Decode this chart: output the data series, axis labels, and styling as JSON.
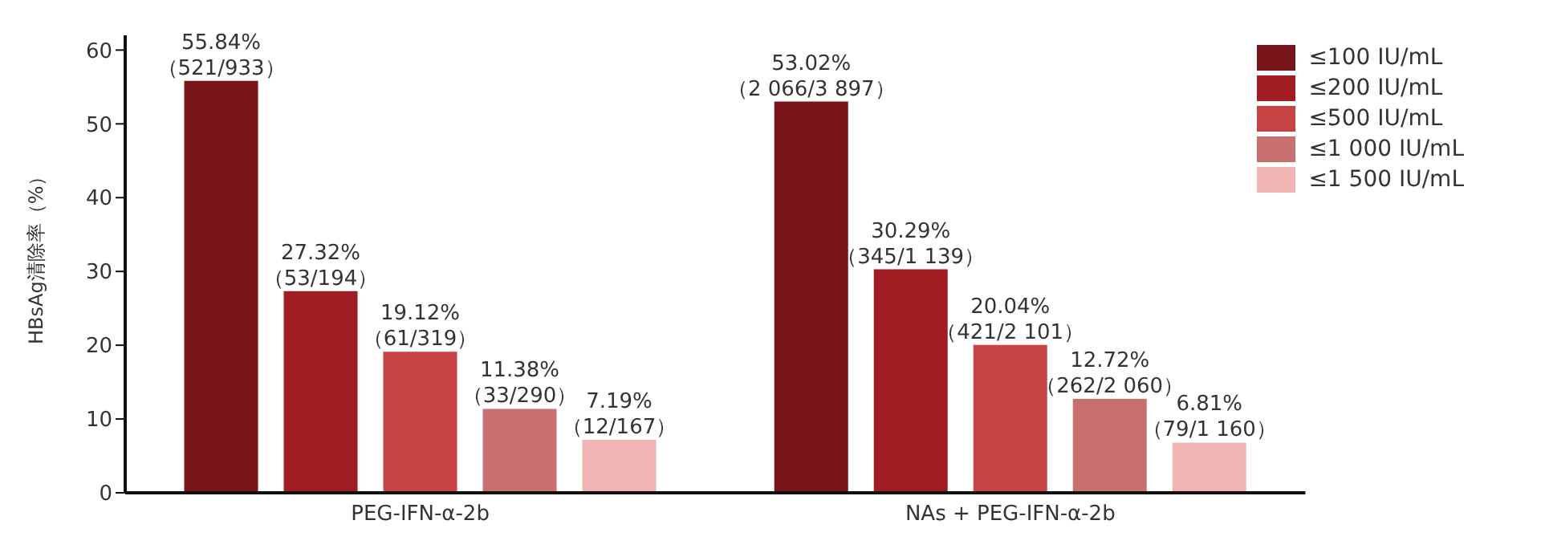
{
  "chart_data": {
    "type": "bar",
    "ylabel": "HBsAg清除率（%）",
    "categories": [
      "PEG-IFN-α-2b",
      "NAs + PEG-IFN-α-2b"
    ],
    "series": [
      {
        "name": "≤100 IU/mL",
        "color": "#761419",
        "values": [
          55.84,
          53.02
        ],
        "value_labels": [
          "55.84%\n（521/933）",
          "53.02%\n（2 066/3 897）"
        ]
      },
      {
        "name": "≤200 IU/mL",
        "color": "#a01d24",
        "values": [
          27.32,
          30.29
        ],
        "value_labels": [
          "27.32%\n（53/194）",
          "30.29%\n（345/1 139）"
        ]
      },
      {
        "name": "≤500 IU/mL",
        "color": "#c84444",
        "values": [
          19.12,
          20.04
        ],
        "value_labels": [
          "19.12%\n（61/319）",
          "20.04%\n（421/2 101）"
        ]
      },
      {
        "name": "≤1 000 IU/mL",
        "color": "#c87070",
        "values": [
          11.38,
          12.72
        ],
        "value_labels": [
          "11.38%\n（33/290）",
          "12.72%\n（262/2 060）"
        ]
      },
      {
        "name": "≤1 500 IU/mL",
        "color": "#f0b4b4",
        "values": [
          7.19,
          6.81
        ],
        "value_labels": [
          "7.19%\n（12/167）",
          "6.81%\n（79/1 160）"
        ]
      }
    ],
    "ylim": [
      0,
      62
    ],
    "yticks": [
      0,
      10,
      20,
      30,
      40,
      50,
      60
    ],
    "grid": false,
    "legend": "top right"
  }
}
